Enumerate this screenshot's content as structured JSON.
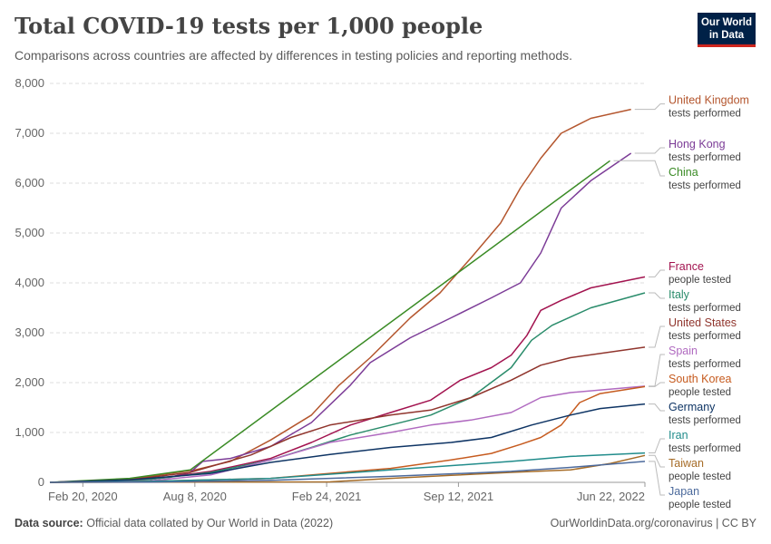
{
  "header": {
    "title": "Total COVID-19 tests per 1,000 people",
    "subtitle": "Comparisons across countries are affected by differences in testing policies and reporting methods.",
    "logo_line1": "Our World",
    "logo_line2": "in Data"
  },
  "footer": {
    "source_label": "Data source:",
    "source_text": "Official data collated by Our World in Data (2022)",
    "right_text": "OurWorldinData.org/coronavirus | CC BY"
  },
  "chart_data": {
    "type": "line",
    "title": "Total COVID-19 tests per 1,000 people",
    "ylim": [
      0,
      8000
    ],
    "y_ticks": [
      0,
      1000,
      2000,
      3000,
      4000,
      5000,
      6000,
      7000,
      8000
    ],
    "y_tick_labels": [
      "0",
      "1,000",
      "2,000",
      "3,000",
      "4,000",
      "5,000",
      "6,000",
      "7,000",
      "8,000"
    ],
    "xlim": [
      "2020-01-01",
      "2022-06-22"
    ],
    "x_ticks": [
      "2020-02-20",
      "2020-08-08",
      "2021-02-24",
      "2021-09-12",
      "2022-06-22"
    ],
    "x_tick_labels": [
      "Feb 20, 2020",
      "Aug 8, 2020",
      "Feb 24, 2021",
      "Sep 12, 2021",
      "Jun 22, 2022"
    ],
    "grid": "horizontal dashed",
    "legend": "right",
    "series": [
      {
        "name": "United Kingdom",
        "unit": "tests performed",
        "color": "#b4562e",
        "points": [
          [
            "2020-01-01",
            0
          ],
          [
            "2020-04-01",
            20
          ],
          [
            "2020-06-01",
            120
          ],
          [
            "2020-08-08",
            250
          ],
          [
            "2020-10-01",
            420
          ],
          [
            "2020-12-01",
            850
          ],
          [
            "2021-02-01",
            1350
          ],
          [
            "2021-03-15",
            1950
          ],
          [
            "2021-05-01",
            2500
          ],
          [
            "2021-07-01",
            3300
          ],
          [
            "2021-08-15",
            3800
          ],
          [
            "2021-10-01",
            4500
          ],
          [
            "2021-11-15",
            5200
          ],
          [
            "2021-12-15",
            5900
          ],
          [
            "2022-01-15",
            6500
          ],
          [
            "2022-02-15",
            7000
          ],
          [
            "2022-04-01",
            7300
          ],
          [
            "2022-06-01",
            7480
          ]
        ]
      },
      {
        "name": "Hong Kong",
        "unit": "tests performed",
        "color": "#7c3c97",
        "points": [
          [
            "2020-01-01",
            0
          ],
          [
            "2020-05-01",
            30
          ],
          [
            "2020-07-01",
            100
          ],
          [
            "2020-08-01",
            200
          ],
          [
            "2020-08-20",
            420
          ],
          [
            "2020-10-01",
            480
          ],
          [
            "2020-12-01",
            720
          ],
          [
            "2021-02-01",
            1200
          ],
          [
            "2021-04-01",
            1950
          ],
          [
            "2021-05-01",
            2400
          ],
          [
            "2021-07-01",
            2900
          ],
          [
            "2021-09-01",
            3300
          ],
          [
            "2021-11-01",
            3700
          ],
          [
            "2021-12-15",
            4000
          ],
          [
            "2022-01-15",
            4600
          ],
          [
            "2022-02-15",
            5500
          ],
          [
            "2022-04-01",
            6050
          ],
          [
            "2022-06-01",
            6600
          ]
        ]
      },
      {
        "name": "China",
        "unit": "tests performed",
        "color": "#3a8b25",
        "points": [
          [
            "2020-01-01",
            0
          ],
          [
            "2020-05-01",
            80
          ],
          [
            "2020-08-01",
            250
          ],
          [
            "2022-04-30",
            6450
          ]
        ]
      },
      {
        "name": "France",
        "unit": "people tested",
        "color": "#a2134f",
        "points": [
          [
            "2020-01-01",
            0
          ],
          [
            "2020-06-01",
            60
          ],
          [
            "2020-09-01",
            220
          ],
          [
            "2020-12-01",
            480
          ],
          [
            "2021-02-01",
            800
          ],
          [
            "2021-04-01",
            1150
          ],
          [
            "2021-06-01",
            1400
          ],
          [
            "2021-08-01",
            1650
          ],
          [
            "2021-09-15",
            2050
          ],
          [
            "2021-11-01",
            2300
          ],
          [
            "2021-12-01",
            2550
          ],
          [
            "2021-12-25",
            2950
          ],
          [
            "2022-01-15",
            3450
          ],
          [
            "2022-02-15",
            3650
          ],
          [
            "2022-04-01",
            3900
          ],
          [
            "2022-06-22",
            4120
          ]
        ]
      },
      {
        "name": "Italy",
        "unit": "tests performed",
        "color": "#2a8c6b",
        "points": [
          [
            "2020-01-01",
            0
          ],
          [
            "2020-06-01",
            60
          ],
          [
            "2020-09-01",
            200
          ],
          [
            "2020-12-01",
            450
          ],
          [
            "2021-02-01",
            700
          ],
          [
            "2021-04-01",
            950
          ],
          [
            "2021-06-01",
            1150
          ],
          [
            "2021-08-01",
            1350
          ],
          [
            "2021-10-01",
            1700
          ],
          [
            "2021-12-01",
            2300
          ],
          [
            "2022-01-01",
            2850
          ],
          [
            "2022-02-01",
            3150
          ],
          [
            "2022-04-01",
            3500
          ],
          [
            "2022-06-22",
            3800
          ]
        ]
      },
      {
        "name": "United States",
        "unit": "tests performed",
        "color": "#90352d",
        "points": [
          [
            "2020-01-01",
            0
          ],
          [
            "2020-05-01",
            50
          ],
          [
            "2020-08-01",
            200
          ],
          [
            "2020-11-01",
            550
          ],
          [
            "2021-01-01",
            900
          ],
          [
            "2021-03-01",
            1150
          ],
          [
            "2021-06-01",
            1350
          ],
          [
            "2021-08-01",
            1450
          ],
          [
            "2021-10-01",
            1700
          ],
          [
            "2021-12-01",
            2050
          ],
          [
            "2022-01-15",
            2350
          ],
          [
            "2022-03-01",
            2500
          ],
          [
            "2022-06-22",
            2710
          ]
        ]
      },
      {
        "name": "Spain",
        "unit": "tests performed",
        "color": "#b06ac0",
        "points": [
          [
            "2020-01-01",
            0
          ],
          [
            "2020-06-01",
            30
          ],
          [
            "2020-09-01",
            150
          ],
          [
            "2020-12-01",
            450
          ],
          [
            "2021-03-01",
            800
          ],
          [
            "2021-06-01",
            1000
          ],
          [
            "2021-08-01",
            1150
          ],
          [
            "2021-10-01",
            1250
          ],
          [
            "2021-12-01",
            1400
          ],
          [
            "2022-01-15",
            1700
          ],
          [
            "2022-03-01",
            1800
          ],
          [
            "2022-06-22",
            1930
          ]
        ]
      },
      {
        "name": "South Korea",
        "unit": "people tested",
        "color": "#c65b1f",
        "points": [
          [
            "2020-01-01",
            0
          ],
          [
            "2020-06-01",
            20
          ],
          [
            "2020-12-01",
            80
          ],
          [
            "2021-03-01",
            180
          ],
          [
            "2021-06-01",
            280
          ],
          [
            "2021-09-01",
            450
          ],
          [
            "2021-11-01",
            580
          ],
          [
            "2021-12-15",
            760
          ],
          [
            "2022-01-15",
            900
          ],
          [
            "2022-02-15",
            1150
          ],
          [
            "2022-03-15",
            1600
          ],
          [
            "2022-04-15",
            1780
          ],
          [
            "2022-06-22",
            1920
          ]
        ]
      },
      {
        "name": "Germany",
        "unit": "tests performed",
        "color": "#0e3464",
        "points": [
          [
            "2020-01-01",
            0
          ],
          [
            "2020-05-01",
            50
          ],
          [
            "2020-09-01",
            180
          ],
          [
            "2020-12-01",
            400
          ],
          [
            "2021-03-01",
            560
          ],
          [
            "2021-06-01",
            700
          ],
          [
            "2021-09-01",
            800
          ],
          [
            "2021-11-01",
            900
          ],
          [
            "2022-01-01",
            1150
          ],
          [
            "2022-03-01",
            1350
          ],
          [
            "2022-04-15",
            1480
          ],
          [
            "2022-06-22",
            1570
          ]
        ]
      },
      {
        "name": "Iran",
        "unit": "tests performed",
        "color": "#218c8b",
        "points": [
          [
            "2020-01-01",
            0
          ],
          [
            "2020-06-01",
            20
          ],
          [
            "2020-12-01",
            80
          ],
          [
            "2021-06-01",
            250
          ],
          [
            "2021-12-01",
            420
          ],
          [
            "2022-03-01",
            520
          ],
          [
            "2022-06-22",
            590
          ]
        ]
      },
      {
        "name": "Taiwan",
        "unit": "people tested",
        "color": "#a66c27",
        "points": [
          [
            "2020-01-01",
            0
          ],
          [
            "2021-03-01",
            10
          ],
          [
            "2021-06-01",
            80
          ],
          [
            "2021-09-01",
            140
          ],
          [
            "2021-12-01",
            200
          ],
          [
            "2022-03-01",
            250
          ],
          [
            "2022-05-01",
            380
          ],
          [
            "2022-06-22",
            540
          ]
        ]
      },
      {
        "name": "Japan",
        "unit": "people tested",
        "color": "#4c6a9c",
        "points": [
          [
            "2020-01-01",
            0
          ],
          [
            "2020-06-01",
            5
          ],
          [
            "2020-12-01",
            40
          ],
          [
            "2021-06-01",
            120
          ],
          [
            "2021-12-01",
            220
          ],
          [
            "2022-03-01",
            300
          ],
          [
            "2022-06-22",
            420
          ]
        ]
      }
    ]
  }
}
